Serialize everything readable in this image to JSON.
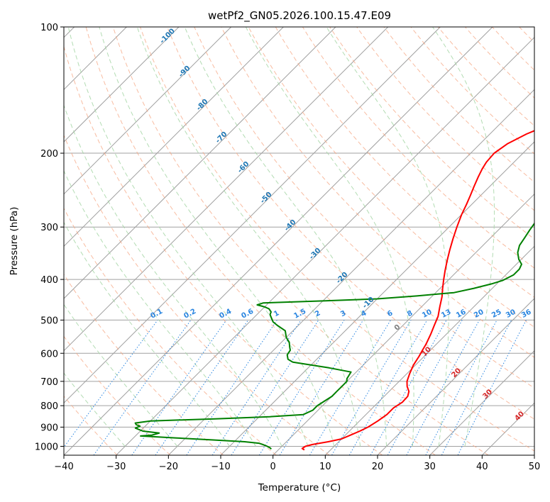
{
  "chart_data": {
    "type": "line",
    "title": "wetPf2_GN05.2026.100.15.47.E09",
    "xlabel": "Temperature (°C)",
    "ylabel": "Pressure (hPa)",
    "xlim": [
      -40,
      50
    ],
    "ylim": [
      1050,
      100
    ],
    "x_ticks": [
      -40,
      -30,
      -20,
      -10,
      0,
      10,
      20,
      30,
      40,
      50
    ],
    "x_tick_labels": [
      "−40",
      "−30",
      "−20",
      "−10",
      "0",
      "10",
      "20",
      "30",
      "40",
      "50"
    ],
    "y_ticks": [
      100,
      200,
      300,
      400,
      500,
      600,
      700,
      800,
      900,
      1000
    ],
    "y_tick_labels": [
      "100",
      "200",
      "300",
      "400",
      "500",
      "600",
      "700",
      "800",
      "900",
      "1000"
    ],
    "grid": true,
    "colors": {
      "temperature": "#ff0000",
      "dewpoint": "#008000",
      "isotherm": "#a0a0a0",
      "dry_adiabat": "#f5a582",
      "moist_adiabat": "#a6d6a6",
      "mixing_ratio": "#2b86e0",
      "dry_adiabat_label": "#d62728",
      "moist_adiabat_label": "#1f77b4",
      "zero_label": "#808080"
    },
    "series": [
      {
        "name": "Temperature",
        "points": [
          [
            5.0,
            1020
          ],
          [
            4.3,
            1012
          ],
          [
            4.5,
            1000
          ],
          [
            5.5,
            990
          ],
          [
            8.0,
            975
          ],
          [
            10.0,
            960
          ],
          [
            11.0,
            940
          ],
          [
            12.0,
            920
          ],
          [
            12.8,
            900
          ],
          [
            13.5,
            870
          ],
          [
            14.0,
            840
          ],
          [
            14.0,
            810
          ],
          [
            14.6,
            785
          ],
          [
            14.5,
            760
          ],
          [
            13.8,
            740
          ],
          [
            12.5,
            720
          ],
          [
            11.5,
            700
          ],
          [
            10.5,
            670
          ],
          [
            9.6,
            640
          ],
          [
            9.0,
            610
          ],
          [
            8.5,
            590
          ],
          [
            8.0,
            570
          ],
          [
            7.0,
            540
          ],
          [
            6.0,
            515
          ],
          [
            5.0,
            490
          ],
          [
            3.5,
            465
          ],
          [
            2.0,
            440
          ],
          [
            0.5,
            420
          ],
          [
            -1.0,
            400
          ],
          [
            -2.5,
            380
          ],
          [
            -4.0,
            360
          ],
          [
            -5.5,
            340
          ],
          [
            -7.0,
            320
          ],
          [
            -8.5,
            300
          ],
          [
            -10.0,
            280
          ],
          [
            -11.0,
            265
          ],
          [
            -12.0,
            252
          ],
          [
            -13.0,
            240
          ],
          [
            -14.0,
            228
          ],
          [
            -14.8,
            218
          ],
          [
            -15.3,
            210
          ],
          [
            -15.5,
            200
          ],
          [
            -14.8,
            190
          ],
          [
            -13.0,
            180
          ],
          [
            -10.2,
            170
          ],
          [
            -7.5,
            160
          ],
          [
            -5.0,
            150
          ],
          [
            -3.0,
            140
          ],
          [
            -1.5,
            130
          ],
          [
            -0.2,
            120
          ],
          [
            1.5,
            110
          ],
          [
            4.0,
            100
          ]
        ]
      },
      {
        "name": "Dewpoint",
        "points": [
          [
            -1.5,
            1015
          ],
          [
            -2.0,
            1008
          ],
          [
            -3.0,
            998
          ],
          [
            -4.0,
            990
          ],
          [
            -5.0,
            983
          ],
          [
            -8.0,
            975
          ],
          [
            -15.0,
            965
          ],
          [
            -22.0,
            955
          ],
          [
            -29.0,
            945
          ],
          [
            -27.0,
            940
          ],
          [
            -26.0,
            930
          ],
          [
            -29.5,
            920
          ],
          [
            -31.5,
            905
          ],
          [
            -31.0,
            895
          ],
          [
            -32.0,
            888
          ],
          [
            -32.5,
            880
          ],
          [
            -30.0,
            870
          ],
          [
            -18.0,
            860
          ],
          [
            -8.0,
            850
          ],
          [
            -2.0,
            840
          ],
          [
            -1.0,
            820
          ],
          [
            -1.0,
            800
          ],
          [
            -0.5,
            780
          ],
          [
            0.0,
            760
          ],
          [
            0.0,
            740
          ],
          [
            0.0,
            720
          ],
          [
            0.0,
            700
          ],
          [
            -0.5,
            690
          ],
          [
            -0.7,
            680
          ],
          [
            -1.0,
            665
          ],
          [
            -6.0,
            650
          ],
          [
            -10.0,
            640
          ],
          [
            -14.0,
            630
          ],
          [
            -15.5,
            620
          ],
          [
            -16.5,
            605
          ],
          [
            -16.8,
            590
          ],
          [
            -17.5,
            580
          ],
          [
            -18.5,
            565
          ],
          [
            -20.0,
            550
          ],
          [
            -21.5,
            530
          ],
          [
            -24.0,
            515
          ],
          [
            -25.5,
            505
          ],
          [
            -26.5,
            495
          ],
          [
            -27.5,
            485
          ],
          [
            -27.8,
            478
          ],
          [
            -28.8,
            470
          ],
          [
            -30.0,
            465
          ],
          [
            -31.8,
            460
          ],
          [
            -31.0,
            455
          ],
          [
            -20.0,
            450
          ],
          [
            -10.0,
            445
          ],
          [
            -3.0,
            438
          ],
          [
            3.5,
            430
          ],
          [
            6.5,
            420
          ],
          [
            9.0,
            410
          ],
          [
            10.5,
            402
          ],
          [
            11.5,
            390
          ],
          [
            11.5,
            378
          ],
          [
            11.0,
            368
          ],
          [
            9.5,
            358
          ],
          [
            8.0,
            345
          ],
          [
            7.0,
            332
          ],
          [
            6.5,
            318
          ],
          [
            6.0,
            305
          ],
          [
            5.5,
            290
          ],
          [
            4.8,
            278
          ],
          [
            4.5,
            268
          ],
          [
            4.2,
            260
          ],
          [
            3.5,
            248
          ],
          [
            2.8,
            240
          ],
          [
            2.0,
            232
          ],
          [
            1.2,
            224
          ],
          [
            1.0,
            215
          ],
          [
            0.5,
            205
          ],
          [
            0.0,
            195
          ],
          [
            -1.0,
            185
          ],
          [
            -2.5,
            175
          ],
          [
            -4.5,
            165
          ],
          [
            -7.0,
            155
          ],
          [
            -10.0,
            145
          ],
          [
            -13.5,
            135
          ],
          [
            -17.0,
            125
          ],
          [
            -20.5,
            115
          ],
          [
            -24.0,
            105
          ],
          [
            -26.5,
            100
          ]
        ]
      }
    ],
    "dry_adiabat_labels": [
      "10",
      "20",
      "30",
      "40"
    ],
    "moist_adiabat_labels": [
      "-100",
      "-90",
      "-80",
      "-70",
      "-60",
      "-50",
      "-40",
      "-30",
      "-20",
      "-10",
      "0"
    ],
    "mixing_ratio_labels": [
      "0.1",
      "0.2",
      "0.4",
      "0.6",
      "1",
      "1.5",
      "2",
      "3",
      "4",
      "6",
      "8",
      "10",
      "13",
      "16",
      "20",
      "25",
      "30",
      "36"
    ]
  }
}
